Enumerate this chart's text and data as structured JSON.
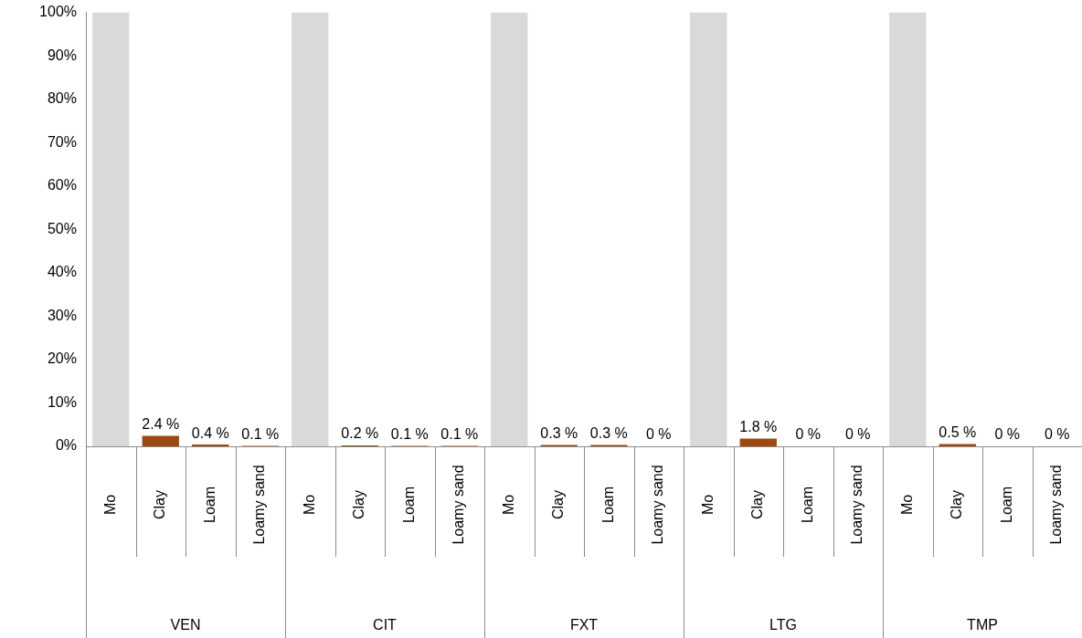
{
  "chart_data": {
    "type": "bar",
    "categories": [
      "Mo",
      "Clay",
      "Loam",
      "Loamy sand",
      "Mo",
      "Clay",
      "Loam",
      "Loamy sand",
      "Mo",
      "Clay",
      "Loam",
      "Loamy sand",
      "Mo",
      "Clay",
      "Loam",
      "Loamy sand",
      "Mo",
      "Clay",
      "Loam",
      "Loamy sand"
    ],
    "values": [
      100,
      2.4,
      0.4,
      0.1,
      100,
      0.2,
      0.1,
      0.1,
      100,
      0.3,
      0.3,
      0,
      100,
      1.8,
      0,
      0,
      100,
      0.5,
      0,
      0
    ],
    "colors": [
      "#d9d9d9",
      "#9c4a12",
      "#9c4a12",
      "#9c4a12",
      "#d9d9d9",
      "#9c4a12",
      "#9c4a12",
      "#9c4a12",
      "#d9d9d9",
      "#9c4a12",
      "#9c4a12",
      "#9c4a12",
      "#d9d9d9",
      "#9c4a12",
      "#9c4a12",
      "#9c4a12",
      "#d9d9d9",
      "#9c4a12",
      "#9c4a12",
      "#9c4a12"
    ],
    "value_labels": [
      null,
      "2.4 %",
      "0.4 %",
      "0.1 %",
      null,
      "0.2 %",
      "0.1 %",
      "0.1 %",
      null,
      "0.3 %",
      "0.3 %",
      "0 %",
      null,
      "1.8 %",
      "0 %",
      "0 %",
      null,
      "0.5 %",
      "0 %",
      "0 %"
    ],
    "annotations": [
      "VEN",
      "CIT",
      "FXT",
      "LTG",
      "TMP"
    ],
    "ylim": [
      0,
      100
    ],
    "yticks": [
      {
        "value": 0,
        "label": "0%"
      },
      {
        "value": 10,
        "label": "10%"
      },
      {
        "value": 20,
        "label": "20%"
      },
      {
        "value": 30,
        "label": "30%"
      },
      {
        "value": 40,
        "label": "40%"
      },
      {
        "value": 50,
        "label": "50%"
      },
      {
        "value": 60,
        "label": "60%"
      },
      {
        "value": 70,
        "label": "70%"
      },
      {
        "value": 80,
        "label": "80%"
      },
      {
        "value": 90,
        "label": "90%"
      },
      {
        "value": 100,
        "label": "100%"
      }
    ],
    "grid": false,
    "legend": false
  }
}
